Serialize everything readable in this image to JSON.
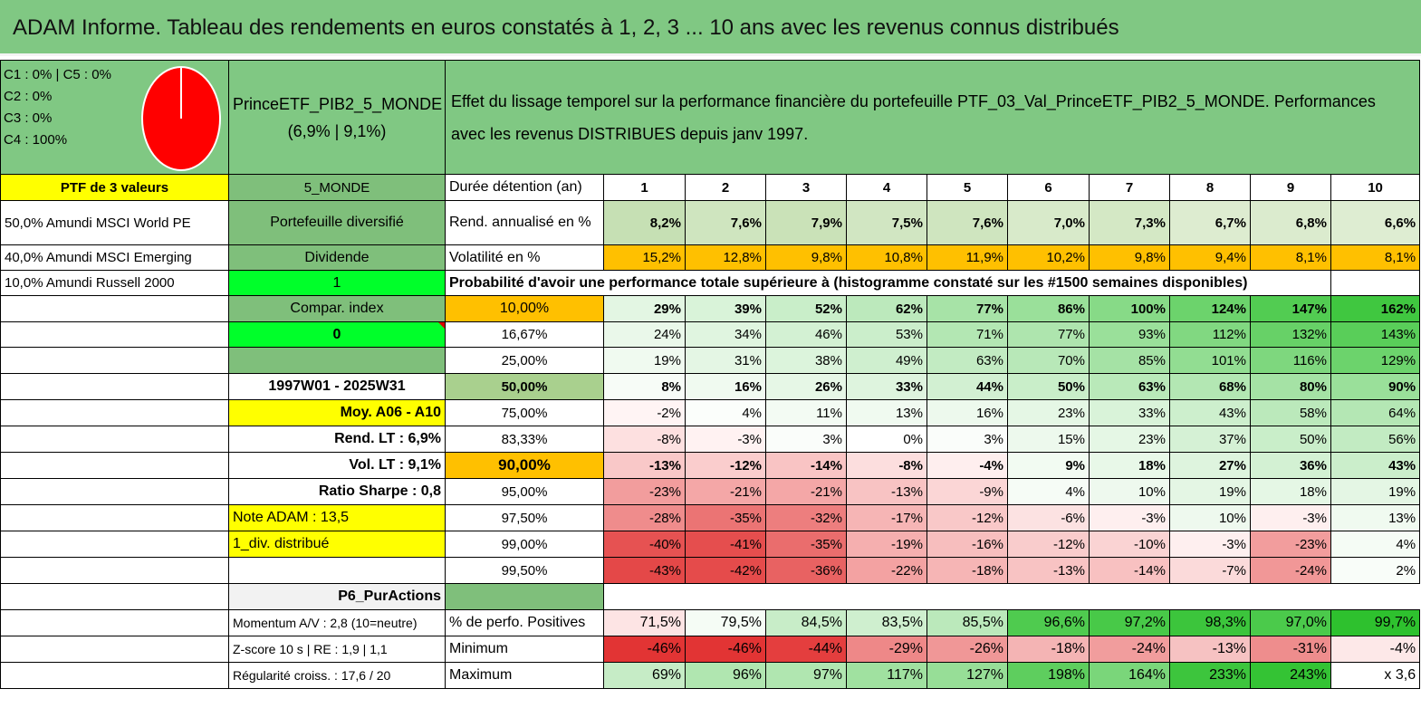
{
  "title": "ADAM Informe. Tableau des rendements en euros constatés à 1, 2, 3 ... 10 ans avec les revenus connus distribués",
  "pie": {
    "labels": [
      "C1 : 0% | C5 : 0%",
      "C2 : 0%",
      "C3 : 0%",
      "C4 : 100%"
    ],
    "color": "#ff0000"
  },
  "fund": {
    "name": "PrinceETF_PIB2_5_MONDE",
    "stats": "(6,9% | 9,1%)",
    "description": "Effet du lissage temporel sur la performance financière du portefeuille PTF_03_Val_PrinceETF_PIB2_5_MONDE. Performances avec les revenus DISTRIBUES depuis janv 1997."
  },
  "left": {
    "ptf_header": "PTF de 3 valeurs",
    "holdings": [
      "50,0% Amundi MSCI World PE",
      "40,0% Amundi MSCI Emerging",
      "10,0% Amundi Russell 2000"
    ]
  },
  "mid": {
    "zone": "5_MONDE",
    "diversified": "Portefeuille diversifié",
    "dividend": "Dividende",
    "dividend_value": "1",
    "compar": "Compar. index",
    "compar_value": "0",
    "period": "1997W01 - 2025W31",
    "moy": "Moy. A06 - A10",
    "rend_lt": "Rend. LT : 6,9%",
    "vol_lt": "Vol. LT : 9,1%",
    "sharpe": "Ratio Sharpe : 0,8",
    "note": "Note ADAM : 13,5",
    "div_distrib": "1_div. distribué",
    "p6": "P6_PurActions",
    "momentum": "Momentum A/V : 2,8 (10=neutre)",
    "zscore": "Z-score 10 s | RE : 1,9 | 1,1",
    "regularite": "Régularité croiss. : 17,6 / 20"
  },
  "table": {
    "duree_label": "Durée détention (an)",
    "years": [
      "1",
      "2",
      "3",
      "4",
      "5",
      "6",
      "7",
      "8",
      "9",
      "10"
    ],
    "rend_label": "Rend. annualisé en %",
    "rend": [
      "8,2%",
      "7,6%",
      "7,9%",
      "7,5%",
      "7,6%",
      "7,0%",
      "7,3%",
      "6,7%",
      "6,8%",
      "6,6%"
    ],
    "vol_label": "Volatilité en %",
    "vol": [
      "15,2%",
      "12,8%",
      "9,8%",
      "10,8%",
      "11,9%",
      "10,2%",
      "9,8%",
      "9,4%",
      "8,1%",
      "8,1%"
    ],
    "proba_label": "Probabilité d'avoir une performance totale supérieure à (histogramme constaté sur les #1500 semaines disponibles)",
    "quantiles": [
      {
        "q": "10,00%",
        "vals": [
          "29%",
          "39%",
          "52%",
          "62%",
          "77%",
          "86%",
          "100%",
          "124%",
          "147%",
          "162%"
        ],
        "bold": true
      },
      {
        "q": "16,67%",
        "vals": [
          "24%",
          "34%",
          "46%",
          "53%",
          "71%",
          "77%",
          "93%",
          "112%",
          "132%",
          "143%"
        ],
        "bold": false
      },
      {
        "q": "25,00%",
        "vals": [
          "19%",
          "31%",
          "38%",
          "49%",
          "63%",
          "70%",
          "85%",
          "101%",
          "116%",
          "129%"
        ],
        "bold": false
      },
      {
        "q": "50,00%",
        "vals": [
          "8%",
          "16%",
          "26%",
          "33%",
          "44%",
          "50%",
          "63%",
          "68%",
          "80%",
          "90%"
        ],
        "bold": true
      },
      {
        "q": "75,00%",
        "vals": [
          "-2%",
          "4%",
          "11%",
          "13%",
          "16%",
          "23%",
          "33%",
          "43%",
          "58%",
          "64%"
        ],
        "bold": false
      },
      {
        "q": "83,33%",
        "vals": [
          "-8%",
          "-3%",
          "3%",
          "0%",
          "3%",
          "15%",
          "23%",
          "37%",
          "50%",
          "56%"
        ],
        "bold": false
      },
      {
        "q": "90,00%",
        "vals": [
          "-13%",
          "-12%",
          "-14%",
          "-8%",
          "-4%",
          "9%",
          "18%",
          "27%",
          "36%",
          "43%"
        ],
        "bold": true
      },
      {
        "q": "95,00%",
        "vals": [
          "-23%",
          "-21%",
          "-21%",
          "-13%",
          "-9%",
          "4%",
          "10%",
          "19%",
          "18%",
          "19%"
        ],
        "bold": false
      },
      {
        "q": "97,50%",
        "vals": [
          "-28%",
          "-35%",
          "-32%",
          "-17%",
          "-12%",
          "-6%",
          "-3%",
          "10%",
          "-3%",
          "13%"
        ],
        "bold": false
      },
      {
        "q": "99,00%",
        "vals": [
          "-40%",
          "-41%",
          "-35%",
          "-19%",
          "-16%",
          "-12%",
          "-10%",
          "-3%",
          "-23%",
          "4%"
        ],
        "bold": false
      },
      {
        "q": "99,50%",
        "vals": [
          "-43%",
          "-42%",
          "-36%",
          "-22%",
          "-18%",
          "-13%",
          "-14%",
          "-7%",
          "-24%",
          "2%"
        ],
        "bold": false
      }
    ],
    "positive_label": "% de perfo. Positives",
    "positive": [
      "71,5%",
      "79,5%",
      "84,5%",
      "83,5%",
      "85,5%",
      "96,6%",
      "97,2%",
      "98,3%",
      "97,0%",
      "99,7%"
    ],
    "min_label": "Minimum",
    "min": [
      "-46%",
      "-46%",
      "-44%",
      "-29%",
      "-26%",
      "-18%",
      "-24%",
      "-13%",
      "-31%",
      "-4%"
    ],
    "max_label": "Maximum",
    "max": [
      "69%",
      "96%",
      "97%",
      "117%",
      "127%",
      "198%",
      "164%",
      "233%",
      "243%",
      "x 3,6"
    ]
  },
  "colors": {
    "header_green": "#80c883",
    "yellow": "#ffff00",
    "orange": "#ffc000",
    "bright_green": "#00ff2a",
    "light_green": "#a9d08e"
  }
}
